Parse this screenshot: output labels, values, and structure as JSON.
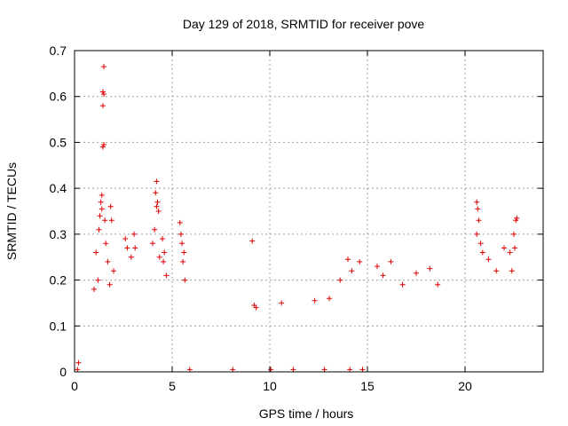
{
  "chart_data": {
    "type": "scatter",
    "title": "Day 129 of 2018, SRMTID for receiver pove",
    "xlabel": "GPS time / hours",
    "ylabel": "SRMTID / TECUs",
    "xlim": [
      0,
      24
    ],
    "ylim": [
      0,
      0.7
    ],
    "xticks": [
      0,
      5,
      10,
      15,
      20
    ],
    "yticks": [
      0,
      0.1,
      0.2,
      0.3,
      0.4,
      0.5,
      0.6,
      0.7
    ],
    "x_tick_labels": [
      "0",
      "5",
      "10",
      "15",
      "20"
    ],
    "y_tick_labels": [
      "0",
      "0.1",
      "0.2",
      "0.3",
      "0.4",
      "0.5",
      "0.6",
      "0.7"
    ],
    "grid": true,
    "marker": "+",
    "color": "#e00000",
    "series": [
      {
        "name": "SRMTID",
        "points": [
          [
            1.5,
            0.665
          ],
          [
            1.45,
            0.61
          ],
          [
            1.5,
            0.605
          ],
          [
            1.45,
            0.58
          ],
          [
            1.5,
            0.495
          ],
          [
            1.45,
            0.49
          ],
          [
            1.4,
            0.385
          ],
          [
            1.35,
            0.37
          ],
          [
            1.4,
            0.355
          ],
          [
            1.3,
            0.34
          ],
          [
            1.55,
            0.33
          ],
          [
            1.25,
            0.31
          ],
          [
            1.1,
            0.26
          ],
          [
            1.6,
            0.28
          ],
          [
            1.7,
            0.24
          ],
          [
            1.0,
            0.18
          ],
          [
            1.2,
            0.2
          ],
          [
            1.85,
            0.36
          ],
          [
            1.9,
            0.33
          ],
          [
            2.0,
            0.22
          ],
          [
            1.8,
            0.19
          ],
          [
            2.6,
            0.29
          ],
          [
            2.7,
            0.27
          ],
          [
            3.05,
            0.3
          ],
          [
            3.1,
            0.27
          ],
          [
            2.9,
            0.25
          ],
          [
            4.2,
            0.415
          ],
          [
            4.15,
            0.39
          ],
          [
            4.25,
            0.37
          ],
          [
            4.2,
            0.36
          ],
          [
            4.3,
            0.35
          ],
          [
            4.1,
            0.31
          ],
          [
            4.5,
            0.29
          ],
          [
            4.0,
            0.28
          ],
          [
            4.6,
            0.26
          ],
          [
            4.35,
            0.25
          ],
          [
            4.55,
            0.24
          ],
          [
            4.7,
            0.21
          ],
          [
            5.4,
            0.325
          ],
          [
            5.45,
            0.3
          ],
          [
            5.5,
            0.28
          ],
          [
            5.6,
            0.26
          ],
          [
            5.55,
            0.24
          ],
          [
            5.65,
            0.2
          ],
          [
            9.1,
            0.285
          ],
          [
            9.2,
            0.145
          ],
          [
            9.3,
            0.14
          ],
          [
            10.6,
            0.15
          ],
          [
            12.3,
            0.155
          ],
          [
            13.05,
            0.16
          ],
          [
            13.6,
            0.2
          ],
          [
            14.0,
            0.245
          ],
          [
            14.2,
            0.22
          ],
          [
            14.6,
            0.24
          ],
          [
            15.5,
            0.23
          ],
          [
            15.8,
            0.21
          ],
          [
            16.2,
            0.24
          ],
          [
            16.8,
            0.19
          ],
          [
            17.5,
            0.215
          ],
          [
            18.2,
            0.225
          ],
          [
            18.6,
            0.19
          ],
          [
            20.6,
            0.37
          ],
          [
            20.65,
            0.355
          ],
          [
            20.7,
            0.33
          ],
          [
            20.6,
            0.3
          ],
          [
            20.8,
            0.28
          ],
          [
            20.9,
            0.26
          ],
          [
            21.2,
            0.245
          ],
          [
            21.6,
            0.22
          ],
          [
            22.0,
            0.27
          ],
          [
            22.3,
            0.26
          ],
          [
            22.5,
            0.3
          ],
          [
            22.6,
            0.33
          ],
          [
            22.65,
            0.335
          ],
          [
            22.55,
            0.27
          ],
          [
            22.4,
            0.22
          ],
          [
            0.15,
            0.005
          ],
          [
            0.2,
            0.02
          ],
          [
            5.9,
            0.005
          ],
          [
            8.1,
            0.005
          ],
          [
            10.05,
            0.005
          ],
          [
            11.2,
            0.005
          ],
          [
            12.8,
            0.005
          ],
          [
            14.1,
            0.005
          ],
          [
            14.75,
            0.005
          ]
        ]
      }
    ]
  }
}
